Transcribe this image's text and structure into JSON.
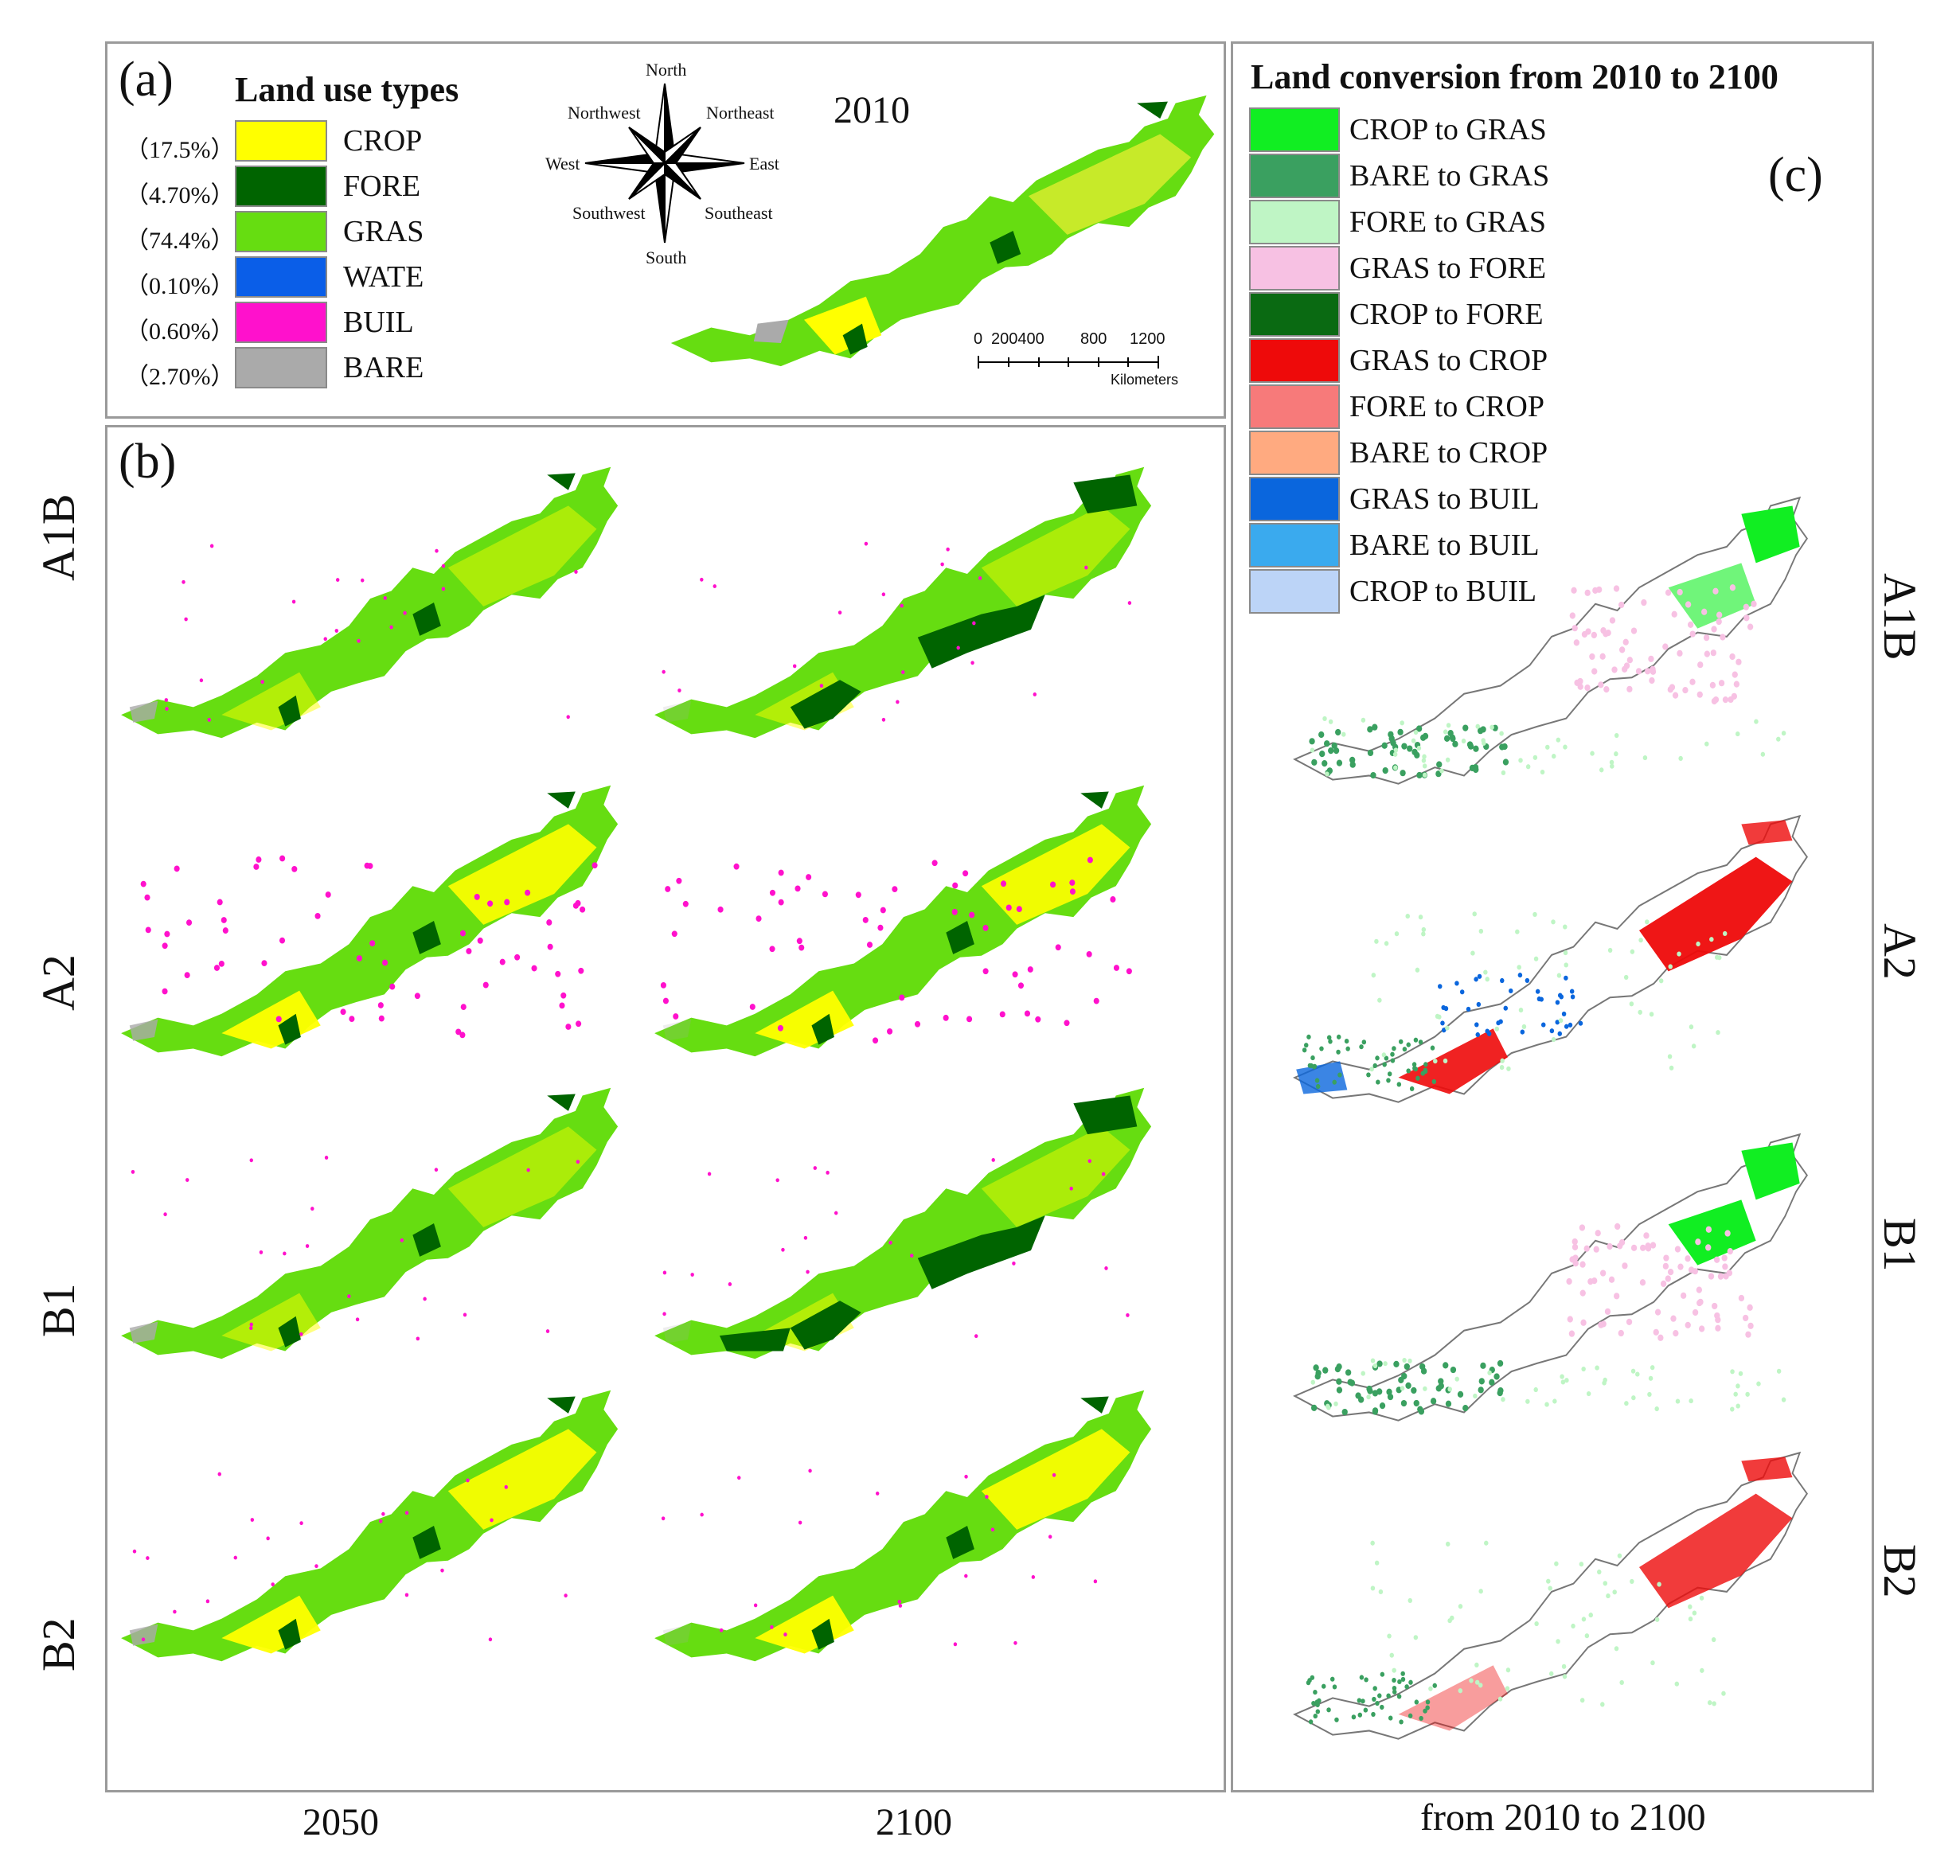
{
  "panel_a": {
    "letter": "(a)",
    "legend_title": "Land use types",
    "year": "2010",
    "classes": [
      {
        "pct": "（17.5%）",
        "code": "CROP",
        "color": "#ffff00"
      },
      {
        "pct": "（4.70%）",
        "code": "FORE",
        "color": "#006400"
      },
      {
        "pct": "（74.4%）",
        "code": "GRAS",
        "color": "#66dd11"
      },
      {
        "pct": "（0.10%）",
        "code": "WATE",
        "color": "#0a5ee8"
      },
      {
        "pct": "（0.60%）",
        "code": "BUIL",
        "color": "#ff11cc"
      },
      {
        "pct": "（2.70%）",
        "code": "BARE",
        "color": "#aaaaaa"
      }
    ],
    "compass": {
      "north": "North",
      "northeast": "Northeast",
      "east": "East",
      "southeast": "Southeast",
      "south": "South",
      "southwest": "Southwest",
      "west": "West",
      "northwest": "Northwest"
    },
    "scalebar": {
      "ticks": [
        "0",
        "200400",
        "800",
        "1200"
      ],
      "unit": "Kilometers"
    }
  },
  "panel_b": {
    "letter": "(b)",
    "rows": [
      "A1B",
      "A2",
      "B1",
      "B2"
    ],
    "columns": [
      "2050",
      "2100"
    ]
  },
  "panel_c": {
    "letter": "(c)",
    "legend_title": "Land conversion from 2010 to 2100",
    "conversions": [
      {
        "label": "CROP to GRAS",
        "color": "#11ee22"
      },
      {
        "label": "BARE to GRAS",
        "color": "#3aa060"
      },
      {
        "label": "FORE to GRAS",
        "color": "#bff5c5"
      },
      {
        "label": "GRAS to FORE",
        "color": "#f7c1e3"
      },
      {
        "label": "CROP to FORE",
        "color": "#0a6a12"
      },
      {
        "label": "GRAS to CROP",
        "color": "#ee0a0a"
      },
      {
        "label": "FORE to CROP",
        "color": "#f77a7a"
      },
      {
        "label": "BARE to CROP",
        "color": "#ffaa80"
      },
      {
        "label": "GRAS to BUIL",
        "color": "#0a66dd"
      },
      {
        "label": "BARE to BUIL",
        "color": "#3aaaee"
      },
      {
        "label": "CROP to BUIL",
        "color": "#bcd4f7"
      }
    ],
    "rows": [
      "A1B",
      "A2",
      "B1",
      "B2"
    ],
    "column_label": "from 2010 to 2100"
  }
}
